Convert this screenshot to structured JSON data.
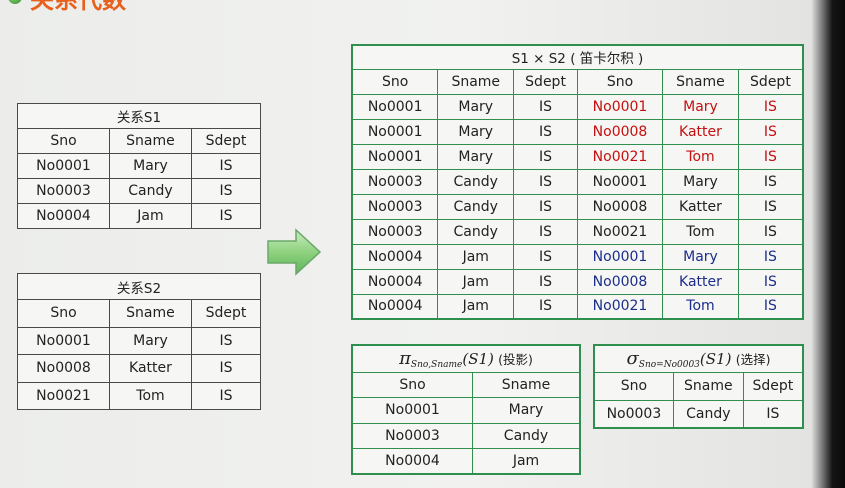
{
  "title": "关系代数",
  "colors": {
    "green_border": "#2f8f4e",
    "red_text": "#c41010",
    "blue_text": "#1c2d8a",
    "title_orange": "#e8601c"
  },
  "s1": {
    "caption": "关系S1",
    "headers": [
      "Sno",
      "Sname",
      "Sdept"
    ],
    "rows": [
      [
        "No0001",
        "Mary",
        "IS"
      ],
      [
        "No0003",
        "Candy",
        "IS"
      ],
      [
        "No0004",
        "Jam",
        "IS"
      ]
    ]
  },
  "s2": {
    "caption": "关系S2",
    "headers": [
      "Sno",
      "Sname",
      "Sdept"
    ],
    "rows": [
      [
        "No0001",
        "Mary",
        "IS"
      ],
      [
        "No0008",
        "Katter",
        "IS"
      ],
      [
        "No0021",
        "Tom",
        "IS"
      ]
    ]
  },
  "product": {
    "caption": "S1 × S2 ( 笛卡尔积 )",
    "headers": [
      "Sno",
      "Sname",
      "Sdept",
      "Sno",
      "Sname",
      "Sdept"
    ],
    "rows": [
      [
        "No0001",
        "Mary",
        "IS",
        "No0001",
        "Mary",
        "IS"
      ],
      [
        "No0001",
        "Mary",
        "IS",
        "No0008",
        "Katter",
        "IS"
      ],
      [
        "No0001",
        "Mary",
        "IS",
        "No0021",
        "Tom",
        "IS"
      ],
      [
        "No0003",
        "Candy",
        "IS",
        "No0001",
        "Mary",
        "IS"
      ],
      [
        "No0003",
        "Candy",
        "IS",
        "No0008",
        "Katter",
        "IS"
      ],
      [
        "No0003",
        "Candy",
        "IS",
        "No0021",
        "Tom",
        "IS"
      ],
      [
        "No0004",
        "Jam",
        "IS",
        "No0001",
        "Mary",
        "IS"
      ],
      [
        "No0004",
        "Jam",
        "IS",
        "No0008",
        "Katter",
        "IS"
      ],
      [
        "No0004",
        "Jam",
        "IS",
        "No0021",
        "Tom",
        "IS"
      ]
    ]
  },
  "projection": {
    "symbol": "π",
    "subscript": "Sno,Sname",
    "argument": "(S1)",
    "note": "(投影)",
    "headers": [
      "Sno",
      "Sname"
    ],
    "rows": [
      [
        "No0001",
        "Mary"
      ],
      [
        "No0003",
        "Candy"
      ],
      [
        "No0004",
        "Jam"
      ]
    ]
  },
  "selection": {
    "symbol": "σ",
    "subscript": "Sno=No0003",
    "argument": "(S1)",
    "note": "(选择)",
    "headers": [
      "Sno",
      "Sname",
      "Sdept"
    ],
    "rows": [
      [
        "No0003",
        "Candy",
        "IS"
      ]
    ]
  }
}
